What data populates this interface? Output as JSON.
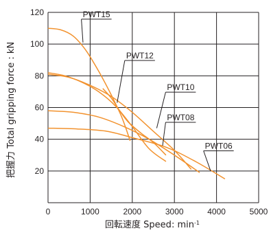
{
  "chart_data": {
    "type": "line",
    "xlabel_main": "回転速度 Speed",
    "xlabel_unit": "min",
    "xlabel_unit_sup": "-1",
    "ylabel": "把握力 Total gripping force : kN",
    "xlim": [
      0,
      5000
    ],
    "ylim": [
      0,
      120
    ],
    "x_ticks": [
      0,
      1000,
      2000,
      3000,
      4000,
      5000
    ],
    "y_ticks": [
      20,
      40,
      60,
      80,
      100,
      120
    ],
    "grid": true,
    "colors": {
      "curve": "#f2922e",
      "grid": "#231f20"
    },
    "series": [
      {
        "name": "PWT15",
        "x": [
          0,
          300,
          600,
          900,
          1200,
          1500,
          1750,
          1950
        ],
        "y": [
          110,
          109,
          105,
          96,
          83,
          68,
          54,
          39
        ],
        "label_x": 3000,
        "label_y": 87
      },
      {
        "name": "PWT12",
        "x": [
          0,
          400,
          800,
          1200,
          1600,
          2000,
          2400,
          2800
        ],
        "y": [
          82,
          80,
          76,
          70,
          61,
          48,
          34,
          26
        ],
        "label_x": 3000,
        "label_y": 87
      },
      {
        "name": "PWT12",
        "x": [
          1300,
          1500,
          1700,
          1900,
          2200,
          2500,
          2800
        ],
        "y": [
          72,
          66,
          58,
          51,
          44,
          38,
          30
        ],
        "label_x": 3000,
        "label_y": 87
      },
      {
        "name": "PWT10",
        "x": [
          0,
          500,
          1000,
          1500,
          2000,
          2500,
          3000,
          3400
        ],
        "y": [
          81,
          79,
          74,
          67,
          57,
          45,
          33,
          21
        ],
        "label_x": 3000,
        "label_y": 87
      },
      {
        "name": "PWT08",
        "x": [
          0,
          600,
          1200,
          1800,
          2400,
          3000,
          3600
        ],
        "y": [
          58,
          57,
          54,
          48,
          40,
          30,
          19
        ],
        "label_x": 3000,
        "label_y": 87
      },
      {
        "name": "PWT06",
        "x": [
          0,
          700,
          1400,
          2000,
          2800,
          3500,
          4200
        ],
        "y": [
          47,
          46.5,
          45,
          41,
          35,
          26,
          15
        ],
        "label_x": 3000,
        "label_y": 87
      }
    ],
    "labels": [
      {
        "text": "PWT15",
        "tx": 1150,
        "ty": 117,
        "ax": 830,
        "ay": 101
      },
      {
        "text": "PWT12",
        "tx": 2180,
        "ty": 91,
        "ax": 1640,
        "ay": 63
      },
      {
        "text": "PWT10",
        "tx": 3150,
        "ty": 71,
        "ax": 2580,
        "ay": 47
      },
      {
        "text": "PWT08",
        "tx": 3150,
        "ty": 52,
        "ax": 2720,
        "ay": 36
      },
      {
        "text": "PWT06",
        "tx": 4050,
        "ty": 34,
        "ax": 3860,
        "ay": 20
      }
    ]
  }
}
